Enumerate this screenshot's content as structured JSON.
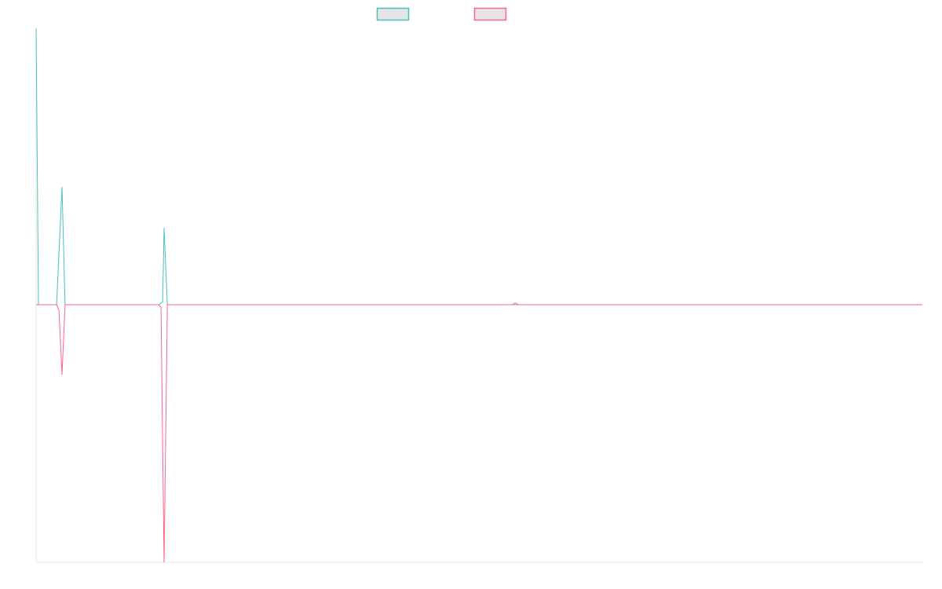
{
  "chart_data": {
    "type": "line",
    "title": "",
    "xlabel": "",
    "ylabel": "",
    "xlim": [
      0,
      376
    ],
    "ylim": [
      -0.932,
      1.0
    ],
    "grid": false,
    "legend_placement": "top",
    "series": [
      {
        "color": "#4bc0c0",
        "points": [
          [
            0,
            1.0
          ],
          [
            1,
            0
          ],
          [
            8.7,
            0
          ],
          [
            11,
            0.426
          ],
          [
            12.3,
            0
          ],
          [
            52,
            0
          ],
          [
            53.7,
            0.01
          ],
          [
            54.3,
            0.278
          ],
          [
            55.7,
            0
          ],
          [
            376,
            0
          ]
        ]
      },
      {
        "color": "#ff6384",
        "points": [
          [
            0,
            0
          ],
          [
            8.7,
            0
          ],
          [
            9.7,
            -0.02
          ],
          [
            11,
            -0.253
          ],
          [
            12.3,
            0
          ],
          [
            52,
            0
          ],
          [
            53,
            -0.01
          ],
          [
            54.3,
            -0.932
          ],
          [
            55.7,
            0
          ],
          [
            202,
            0
          ],
          [
            203.3,
            0.006
          ],
          [
            204.7,
            0
          ],
          [
            376,
            0
          ]
        ]
      }
    ]
  }
}
